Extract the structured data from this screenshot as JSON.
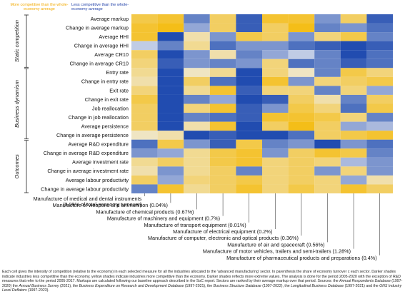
{
  "chart_data": {
    "type": "heatmap",
    "legend": {
      "more_competitive": "More competitive than the whole-economy average",
      "less_competitive": "Less competitive than the whole-economy average"
    },
    "groups": [
      {
        "name": "Static competition",
        "rows": [
          "Average markup",
          "Change in average markup",
          "Average HHI",
          "Change in average HHI",
          "Average CR10",
          "Change in average CR10"
        ]
      },
      {
        "name": "Business dynamism",
        "rows": [
          "Entry rate",
          "Change in entry rate",
          "Exit rate",
          "Change in exit rate",
          "Job reallocation",
          "Change in job reallocation",
          "Average persistence",
          "Change in average persistence"
        ]
      },
      {
        "name": "Outcomes",
        "rows": [
          "Average R&D expenditure",
          "Change in average R&D expenditure",
          "Average investment rate",
          "Change in average investment rate",
          "Average labour productivity",
          "Change in average labour productivity"
        ]
      }
    ],
    "columns": [
      "Manufacture of medical and dental instruments (0.09% of total-economy turnover)",
      "Manufacture of weapons and ammunition (0.04%)",
      "Manufacture of chemical products (0.67%)",
      "Manufacture of machinery and equipment (0.7%)",
      "Manufacture of transport equipment (0.01%)",
      "Manufacture of electrical equipment (0.2%)",
      "Manufacture of computer, electronic and optical products (0.36%)",
      "Manufacture of air and spacecraft (0.56%)",
      "Manufacture of motor vehicles, trailers and semi-trailers (1.28%)",
      "Manufacture of pharmaceutical products and preparations (0.4%)"
    ],
    "column_labels": [
      [
        "Manufacture of medical and dental instruments",
        "(0.09% of total-economy turnover)"
      ],
      [
        "Manufacture of weapons and ammunition (0.04%)"
      ],
      [
        "Manufacture of chemical products (0.67%)"
      ],
      [
        "Manufacture of machinery and equipment (0.7%)"
      ],
      [
        "Manufacture of transport equipment (0.01%)"
      ],
      [
        "Manufacture of electrical equipment (0.2%)"
      ],
      [
        "Manufacture of computer, electronic and optical products (0.36%)"
      ],
      [
        "Manufacture of air and spacecraft (0.56%)"
      ],
      [
        "Manufacture of motor vehicles, trailers and semi-trailers (1.28%)"
      ],
      [
        "Manufacture of pharmaceutical products and preparations (0.4%)"
      ]
    ],
    "value_scale": "positive = less competitive (blue), negative = more competitive (yellow), magnitude = intensity",
    "values": [
      [
        -0.7,
        -0.8,
        0.6,
        -0.6,
        0.8,
        -0.8,
        -0.8,
        0.5,
        -0.6,
        0.8
      ],
      [
        -0.8,
        -0.9,
        0.4,
        -0.6,
        0.8,
        -0.6,
        -0.9,
        0.6,
        0.5,
        0.7
      ],
      [
        -0.8,
        0.9,
        -0.3,
        0.5,
        -0.7,
        -0.6,
        0.5,
        -0.5,
        -0.7,
        0.6
      ],
      [
        0.2,
        0.6,
        -0.4,
        0.7,
        0.5,
        0.5,
        0.7,
        0.8,
        0.9,
        0.8
      ],
      [
        -0.6,
        0.9,
        0.5,
        -0.3,
        0.6,
        0.4,
        0.2,
        0.6,
        0.9,
        0.7
      ],
      [
        -0.5,
        0.8,
        0.5,
        0.6,
        0.5,
        -0.5,
        0.7,
        0.6,
        0.8,
        0.7
      ],
      [
        -0.4,
        0.9,
        -0.2,
        -0.4,
        0.9,
        -0.5,
        -0.2,
        0.6,
        -0.7,
        -0.5
      ],
      [
        -0.3,
        0.9,
        -0.6,
        0.7,
        0.9,
        -0.8,
        0.5,
        -0.5,
        -0.6,
        -0.7
      ],
      [
        -0.5,
        0.9,
        -0.4,
        -0.8,
        0.8,
        -0.5,
        -0.5,
        0.6,
        -0.5,
        0.4
      ],
      [
        -0.7,
        0.9,
        0.6,
        0.4,
        0.9,
        0.8,
        -0.6,
        -0.3,
        0.6,
        -0.6
      ],
      [
        -0.6,
        0.9,
        -0.5,
        -0.8,
        0.8,
        0.5,
        -0.7,
        -0.5,
        0.7,
        -0.7
      ],
      [
        -0.6,
        0.9,
        0.6,
        0.7,
        0.8,
        -0.8,
        -0.8,
        -0.7,
        -0.5,
        0.6
      ],
      [
        -0.6,
        0.9,
        -0.3,
        -0.8,
        0.9,
        -0.6,
        -0.9,
        -0.6,
        0.4,
        0.3
      ],
      [
        -0.2,
        -0.3,
        0.9,
        0.8,
        0.9,
        0.9,
        0.7,
        -0.6,
        -0.7,
        -0.8
      ],
      [
        0.7,
        -0.7,
        0.5,
        0.8,
        -0.7,
        0.6,
        0.5,
        0.9,
        0.5,
        0.7
      ],
      [
        0.5,
        0.4,
        -0.4,
        -0.7,
        -0.8,
        0.5,
        -0.6,
        -0.8,
        -0.7,
        0.6
      ],
      [
        -0.4,
        -0.6,
        -0.4,
        -0.7,
        -0.8,
        -0.5,
        -0.6,
        -0.5,
        0.3,
        0.5
      ],
      [
        -0.3,
        0.5,
        -0.4,
        -0.6,
        0.6,
        -0.5,
        -0.6,
        0.5,
        -0.5,
        0.5
      ],
      [
        -0.6,
        0.4,
        -0.5,
        -0.6,
        -0.7,
        -0.5,
        -0.6,
        -0.5,
        0.4,
        -0.3
      ],
      [
        0.6,
        -0.8,
        -0.4,
        -0.6,
        -0.8,
        -0.5,
        -0.7,
        -0.5,
        -0.8,
        -0.6
      ]
    ],
    "colors": {
      "yellow": "#F5B800",
      "blue": "#0A3AA8",
      "neutral": "#EEF0F4"
    }
  },
  "footnote": {
    "segments": [
      {
        "text": "Each cell gives the intensity of competition (relative to the economy) in each selected measure for all the industries allocated to the 'advanced manufacturing' sector. In parenthesis the share of economy turnover c each sector. Darker shades indicate industries less competitive than the economy, yellow shades indicate industries more competitive than the economy. Darker shades reflects more extreme values. The analysis is done for the period 2005-2020 with the exception of R&D measures that refer to the period 2005-2017. Markups are calculated following our baseline approach described in the SoC report. Sectors are ranked by their average markup over that period. Sources: the ",
        "italic": false
      },
      {
        "text": "Annual Respondents Database",
        "italic": true
      },
      {
        "text": " (1997-2020) the ",
        "italic": false
      },
      {
        "text": "Annual Business Survey",
        "italic": true
      },
      {
        "text": " (2021), the ",
        "italic": false
      },
      {
        "text": "Business Expenditure on Research and Development Database",
        "italic": true
      },
      {
        "text": " (1997-2021), the ",
        "italic": false
      },
      {
        "text": "Business Structure Database",
        "italic": true
      },
      {
        "text": " (1997-2022), the ",
        "italic": false
      },
      {
        "text": "Longitudinal Business Database",
        "italic": true
      },
      {
        "text": " (1997-2021) and the ",
        "italic": false
      },
      {
        "text": "ONS Industry Level Deflators",
        "italic": true
      },
      {
        "text": " (1997-2023).",
        "italic": false
      }
    ]
  }
}
